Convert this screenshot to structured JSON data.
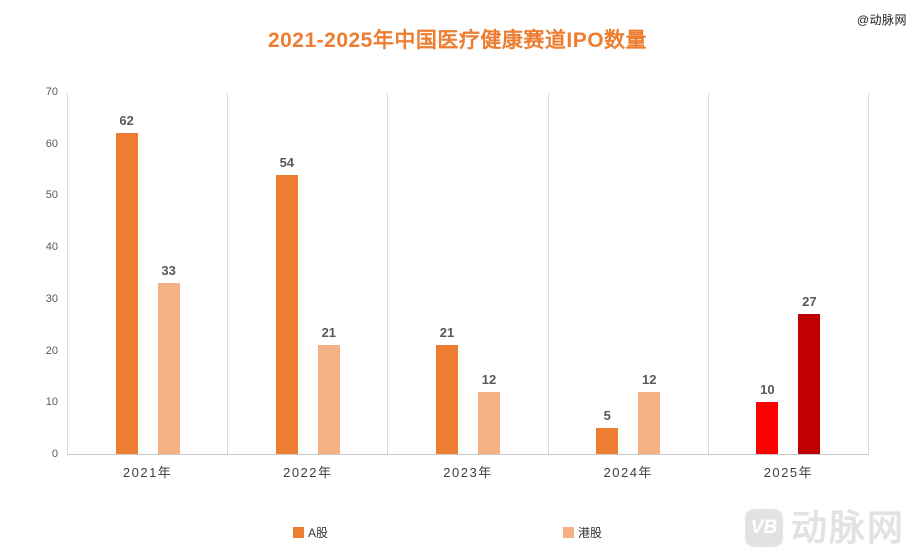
{
  "watermark_top": "@动脉网",
  "title": "2021-2025年中国医疗健康赛道IPO数量",
  "chart_data": {
    "type": "bar",
    "title": "2021-2025年中国医疗健康赛道IPO数量",
    "categories": [
      "2021年",
      "2022年",
      "2023年",
      "2024年",
      "2025年"
    ],
    "series": [
      {
        "name": "A股",
        "values": [
          62,
          54,
          21,
          5,
          10
        ],
        "colors": [
          "#ED7D31",
          "#ED7D31",
          "#ED7D31",
          "#ED7D31",
          "#FF0000"
        ]
      },
      {
        "name": "港股",
        "values": [
          33,
          21,
          12,
          12,
          27
        ],
        "colors": [
          "#F4B183",
          "#F4B183",
          "#F4B183",
          "#F4B183",
          "#C00000"
        ]
      }
    ],
    "ylim": [
      0,
      70
    ],
    "yticks": [
      0,
      10,
      20,
      30,
      40,
      50,
      60,
      70
    ],
    "grid": "vertical-category-separators-only",
    "legend_position": "bottom",
    "data_labels": true
  },
  "legend": {
    "items": [
      {
        "label": "A股",
        "color": "#ED7D31"
      },
      {
        "label": "港股",
        "color": "#F4B183"
      }
    ]
  },
  "logo": {
    "badge": "VB",
    "text": "动脉网"
  },
  "colors": {
    "title": "#ED7D31",
    "a_share_bar": "#ED7D31",
    "hk_bar": "#F4B183",
    "a_share_2025": "#FF0000",
    "hk_2025": "#C00000",
    "axis_line": "#D9D9D9",
    "tick_label": "#595959",
    "data_label": "#595959",
    "category_label": "#404040",
    "logo_gray": "#E2E2E2"
  }
}
